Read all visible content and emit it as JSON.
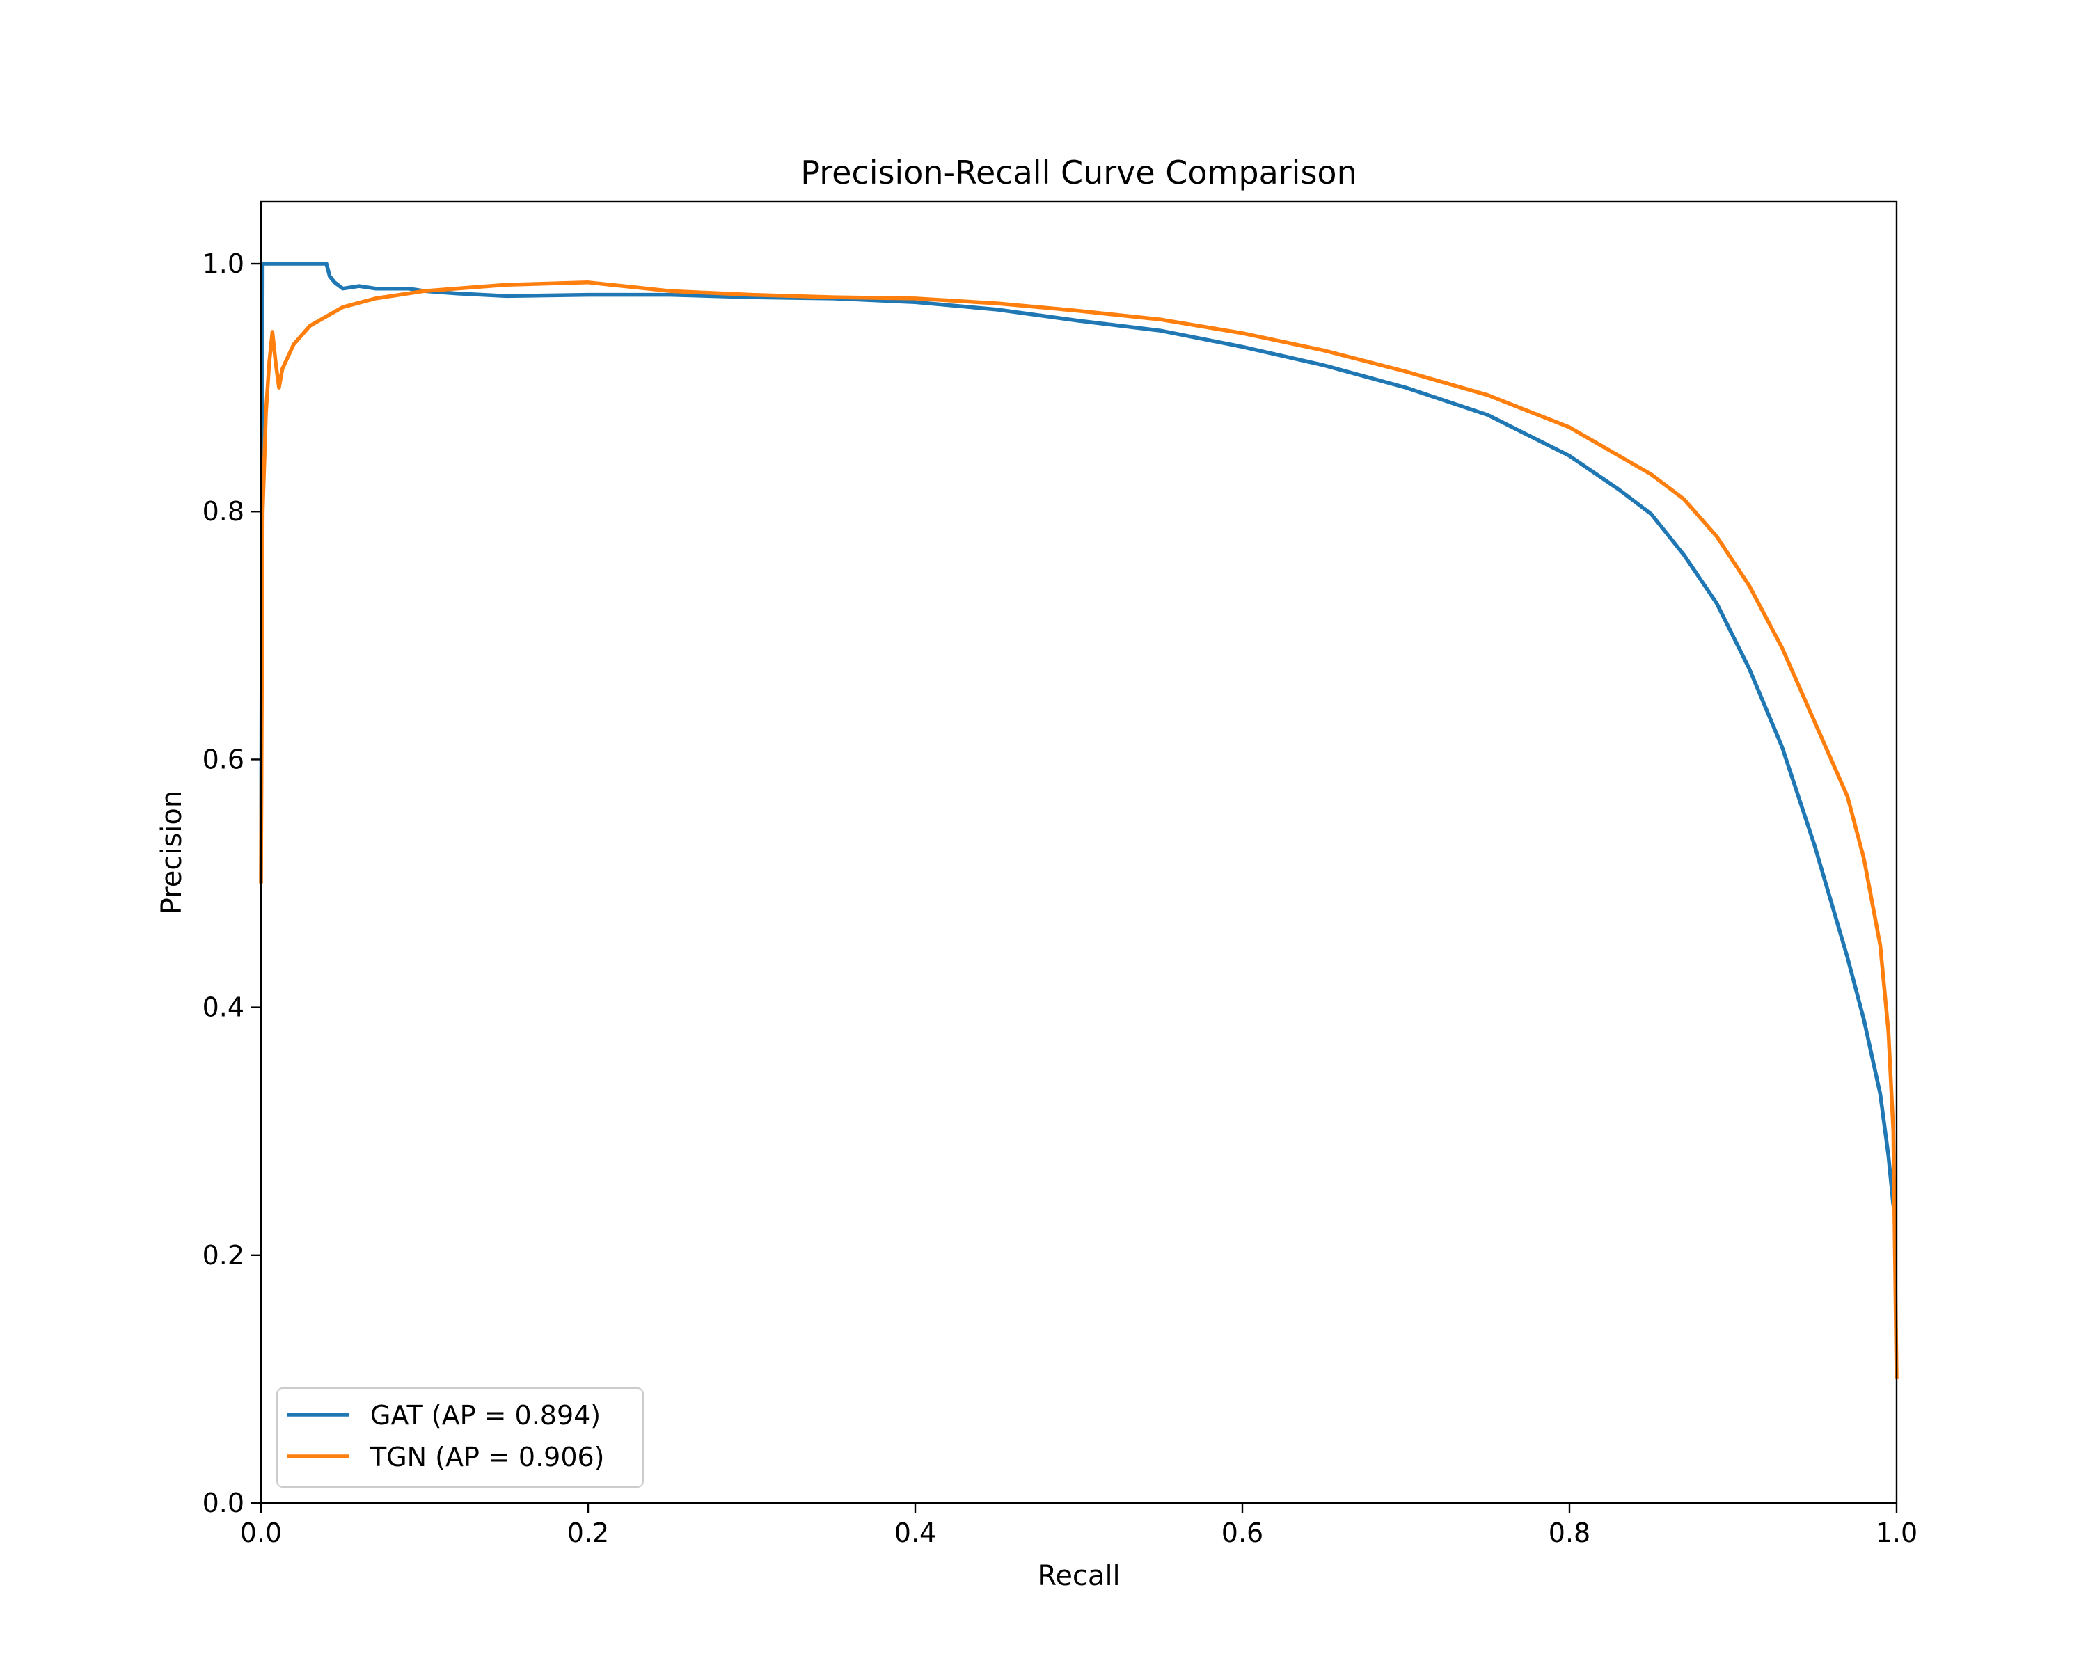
{
  "chart_data": {
    "type": "line",
    "title": "Precision-Recall Curve Comparison",
    "xlabel": "Recall",
    "ylabel": "Precision",
    "xlim": [
      0.0,
      1.0
    ],
    "ylim": [
      0.0,
      1.05
    ],
    "xticks": [
      "0.0",
      "0.2",
      "0.4",
      "0.6",
      "0.8",
      "1.0"
    ],
    "yticks": [
      "0.0",
      "0.2",
      "0.4",
      "0.6",
      "0.8",
      "1.0"
    ],
    "grid": false,
    "legend": "lower-left",
    "series": [
      {
        "name": "GAT (AP = 0.894)",
        "color": "#1f77b4",
        "points": [
          [
            0.0,
            0.5
          ],
          [
            0.0005,
            0.75
          ],
          [
            0.001,
            1.0
          ],
          [
            0.04,
            1.0
          ],
          [
            0.042,
            0.99
          ],
          [
            0.045,
            0.985
          ],
          [
            0.05,
            0.98
          ],
          [
            0.06,
            0.982
          ],
          [
            0.07,
            0.98
          ],
          [
            0.09,
            0.98
          ],
          [
            0.1,
            0.978
          ],
          [
            0.12,
            0.976
          ],
          [
            0.15,
            0.974
          ],
          [
            0.2,
            0.975
          ],
          [
            0.25,
            0.975
          ],
          [
            0.3,
            0.973
          ],
          [
            0.35,
            0.972
          ],
          [
            0.4,
            0.969
          ],
          [
            0.45,
            0.963
          ],
          [
            0.5,
            0.954
          ],
          [
            0.55,
            0.946
          ],
          [
            0.6,
            0.933
          ],
          [
            0.65,
            0.918
          ],
          [
            0.7,
            0.9
          ],
          [
            0.75,
            0.878
          ],
          [
            0.8,
            0.845
          ],
          [
            0.83,
            0.818
          ],
          [
            0.85,
            0.798
          ],
          [
            0.87,
            0.765
          ],
          [
            0.89,
            0.726
          ],
          [
            0.91,
            0.673
          ],
          [
            0.93,
            0.61
          ],
          [
            0.95,
            0.53
          ],
          [
            0.96,
            0.485
          ],
          [
            0.97,
            0.44
          ],
          [
            0.98,
            0.39
          ],
          [
            0.99,
            0.33
          ],
          [
            0.995,
            0.28
          ],
          [
            0.998,
            0.24
          ]
        ]
      },
      {
        "name": "TGN (AP = 0.906)",
        "color": "#ff7f0e",
        "points": [
          [
            0.0,
            0.5
          ],
          [
            0.001,
            0.8
          ],
          [
            0.003,
            0.88
          ],
          [
            0.005,
            0.92
          ],
          [
            0.007,
            0.945
          ],
          [
            0.009,
            0.92
          ],
          [
            0.011,
            0.9
          ],
          [
            0.013,
            0.915
          ],
          [
            0.02,
            0.935
          ],
          [
            0.03,
            0.95
          ],
          [
            0.05,
            0.965
          ],
          [
            0.07,
            0.972
          ],
          [
            0.1,
            0.978
          ],
          [
            0.15,
            0.983
          ],
          [
            0.2,
            0.985
          ],
          [
            0.25,
            0.978
          ],
          [
            0.3,
            0.975
          ],
          [
            0.35,
            0.973
          ],
          [
            0.4,
            0.972
          ],
          [
            0.45,
            0.968
          ],
          [
            0.5,
            0.962
          ],
          [
            0.55,
            0.955
          ],
          [
            0.6,
            0.944
          ],
          [
            0.65,
            0.93
          ],
          [
            0.7,
            0.913
          ],
          [
            0.75,
            0.894
          ],
          [
            0.8,
            0.868
          ],
          [
            0.85,
            0.83
          ],
          [
            0.87,
            0.81
          ],
          [
            0.89,
            0.78
          ],
          [
            0.91,
            0.74
          ],
          [
            0.93,
            0.69
          ],
          [
            0.95,
            0.63
          ],
          [
            0.96,
            0.6
          ],
          [
            0.97,
            0.57
          ],
          [
            0.98,
            0.52
          ],
          [
            0.99,
            0.45
          ],
          [
            0.995,
            0.38
          ],
          [
            0.998,
            0.3
          ],
          [
            1.0,
            0.1
          ]
        ]
      }
    ]
  }
}
